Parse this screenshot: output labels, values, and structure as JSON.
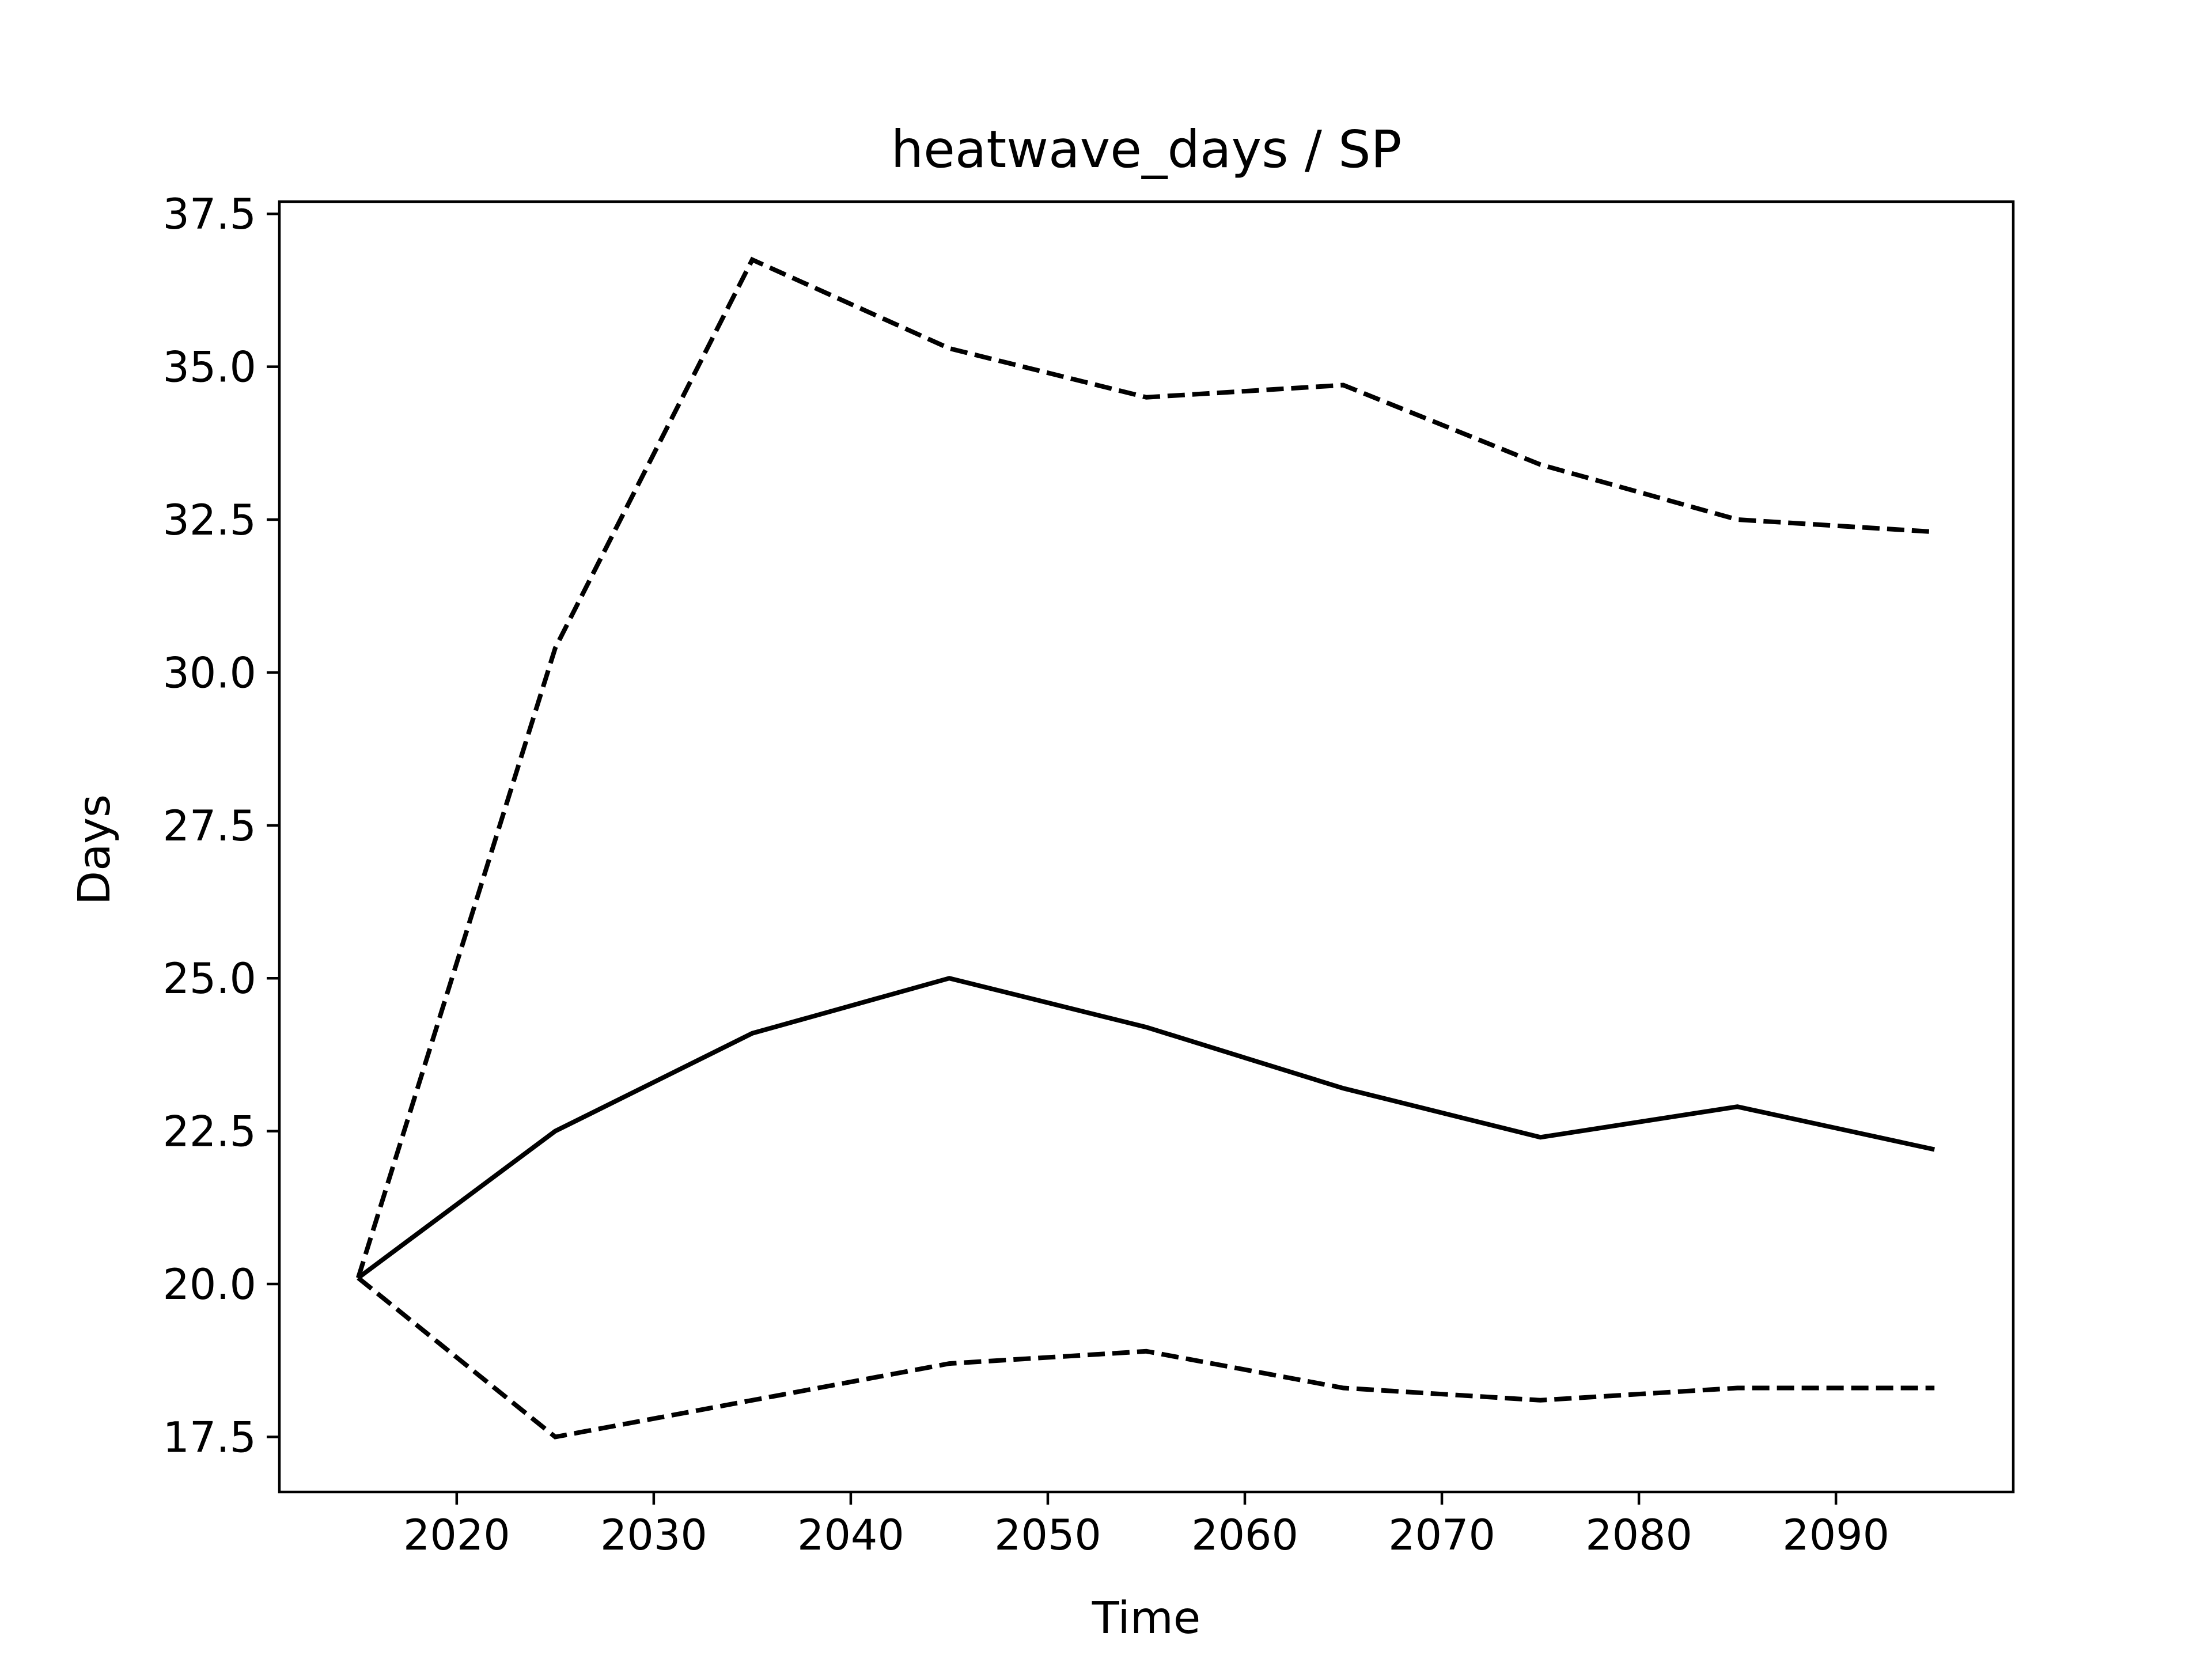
{
  "chart_data": {
    "type": "line",
    "title": "heatwave_days / SP",
    "xlabel": "Time",
    "ylabel": "Days",
    "x": [
      2015,
      2025,
      2035,
      2045,
      2055,
      2065,
      2075,
      2085,
      2095
    ],
    "series": [
      {
        "style": "dashed",
        "values": [
          20.1,
          30.4,
          36.75,
          35.3,
          34.5,
          34.7,
          33.4,
          32.5,
          32.3
        ]
      },
      {
        "style": "solid",
        "values": [
          20.1,
          22.5,
          24.1,
          25.0,
          24.2,
          23.2,
          22.4,
          22.9,
          22.2
        ]
      },
      {
        "style": "dashed",
        "values": [
          20.1,
          17.5,
          18.1,
          18.7,
          18.9,
          18.3,
          18.1,
          18.3,
          18.3
        ]
      }
    ],
    "xlim": [
      2011,
      2099
    ],
    "ylim": [
      16.6,
      37.7
    ],
    "xticks": [
      2020,
      2030,
      2040,
      2050,
      2060,
      2070,
      2080,
      2090
    ],
    "yticks": [
      17.5,
      20.0,
      22.5,
      25.0,
      27.5,
      30.0,
      32.5,
      35.0,
      37.5
    ],
    "ytick_labels": [
      "17.5",
      "20.0",
      "22.5",
      "25.0",
      "27.5",
      "30.0",
      "32.5",
      "35.0",
      "37.5"
    ],
    "grid": false,
    "line_color": "#000000",
    "background": "#ffffff"
  }
}
